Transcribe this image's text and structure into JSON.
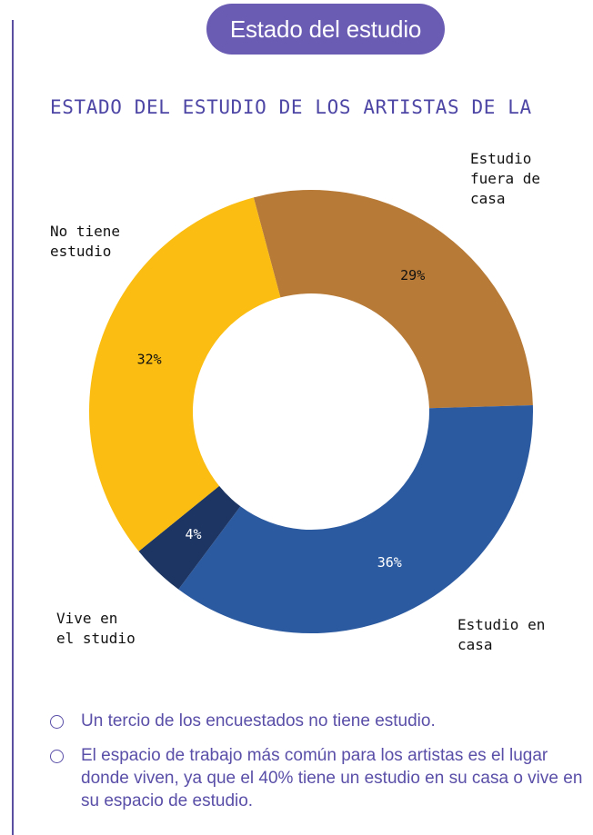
{
  "header": {
    "pill_label": "Estado del estudio"
  },
  "chart_data": {
    "type": "pie",
    "donut": true,
    "title": "ESTADO DEL ESTUDIO DE LOS ARTISTAS DE LA",
    "slices": [
      {
        "label": "Estudio fuera de casa",
        "value": 29,
        "value_label": "29%",
        "color": "#b77a37",
        "value_label_color": "#111111"
      },
      {
        "label": "Estudio en casa",
        "value": 36,
        "value_label": "36%",
        "color": "#2c5aa0",
        "value_label_color": "#ffffff"
      },
      {
        "label": "Vive en el studio",
        "value": 4,
        "value_label": "4%",
        "color": "#1c3563",
        "value_label_color": "#ffffff"
      },
      {
        "label": "No tiene estudio",
        "value": 32,
        "value_label": "32%",
        "color": "#fbbd11",
        "value_label_color": "#111111"
      }
    ]
  },
  "category_labels": {
    "fuera": "Estudio\nfuera de\ncasa",
    "en_casa": "Estudio en\ncasa",
    "vive": "Vive en\nel studio",
    "no_tiene": "No tiene\nestudio"
  },
  "takeaways": [
    "Un tercio de los encuestados no tiene estudio.",
    "El espacio de trabajo más común para los artistas es el lugar donde viven, ya que el 40% tiene un estudio en su casa o vive en su espacio de estudio."
  ],
  "colors": {
    "accent": "#6a5bb3",
    "text_accent": "#5a4fa8"
  }
}
